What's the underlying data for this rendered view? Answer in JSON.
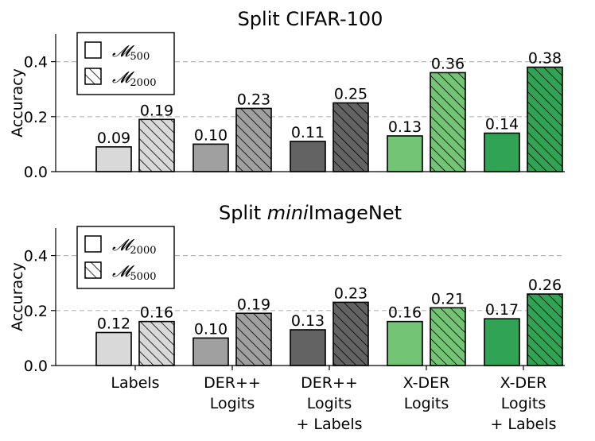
{
  "chart_data": [
    {
      "type": "bar",
      "title": "Split CIFAR-100",
      "ylabel": "Accuracy",
      "ylim": [
        0,
        0.5
      ],
      "yticks": [
        "0.0",
        "0.2",
        "0.4"
      ],
      "grid": "horizontal dashed",
      "legend_placement": "top-left",
      "categories": [
        [
          "Labels"
        ],
        [
          "DER++",
          "Logits"
        ],
        [
          "DER++",
          "Logits",
          "+ Labels"
        ],
        [
          "X-DER",
          "Logits"
        ],
        [
          "X-DER",
          "Logits",
          "+ Labels"
        ]
      ],
      "series": [
        {
          "name": "𝓜",
          "sub": "500",
          "hatch": false,
          "values": [
            0.09,
            0.1,
            0.11,
            0.13,
            0.14
          ],
          "labels": [
            "0.09",
            "0.10",
            "0.11",
            "0.13",
            "0.14"
          ]
        },
        {
          "name": "𝓜",
          "sub": "2000",
          "hatch": true,
          "values": [
            0.19,
            0.23,
            0.25,
            0.36,
            0.38
          ],
          "labels": [
            "0.19",
            "0.23",
            "0.25",
            "0.36",
            "0.38"
          ]
        }
      ],
      "colors": [
        "#d9d9d9",
        "#a0a0a0",
        "#636363",
        "#74c476",
        "#31a354"
      ]
    },
    {
      "type": "bar",
      "title_parts": [
        "Split ",
        "mini",
        "ImageNet"
      ],
      "ylabel": "Accuracy",
      "ylim": [
        0,
        0.5
      ],
      "yticks": [
        "0.0",
        "0.2",
        "0.4"
      ],
      "grid": "horizontal dashed",
      "legend_placement": "top-left",
      "categories": [
        [
          "Labels"
        ],
        [
          "DER++",
          "Logits"
        ],
        [
          "DER++",
          "Logits",
          "+ Labels"
        ],
        [
          "X-DER",
          "Logits"
        ],
        [
          "X-DER",
          "Logits",
          "+ Labels"
        ]
      ],
      "series": [
        {
          "name": "𝓜",
          "sub": "2000",
          "hatch": false,
          "values": [
            0.12,
            0.1,
            0.13,
            0.16,
            0.17
          ],
          "labels": [
            "0.12",
            "0.10",
            "0.13",
            "0.16",
            "0.17"
          ]
        },
        {
          "name": "𝓜",
          "sub": "5000",
          "hatch": true,
          "values": [
            0.16,
            0.19,
            0.23,
            0.21,
            0.26
          ],
          "labels": [
            "0.16",
            "0.19",
            "0.23",
            "0.21",
            "0.26"
          ]
        }
      ],
      "colors": [
        "#d9d9d9",
        "#a0a0a0",
        "#636363",
        "#74c476",
        "#31a354"
      ]
    }
  ]
}
